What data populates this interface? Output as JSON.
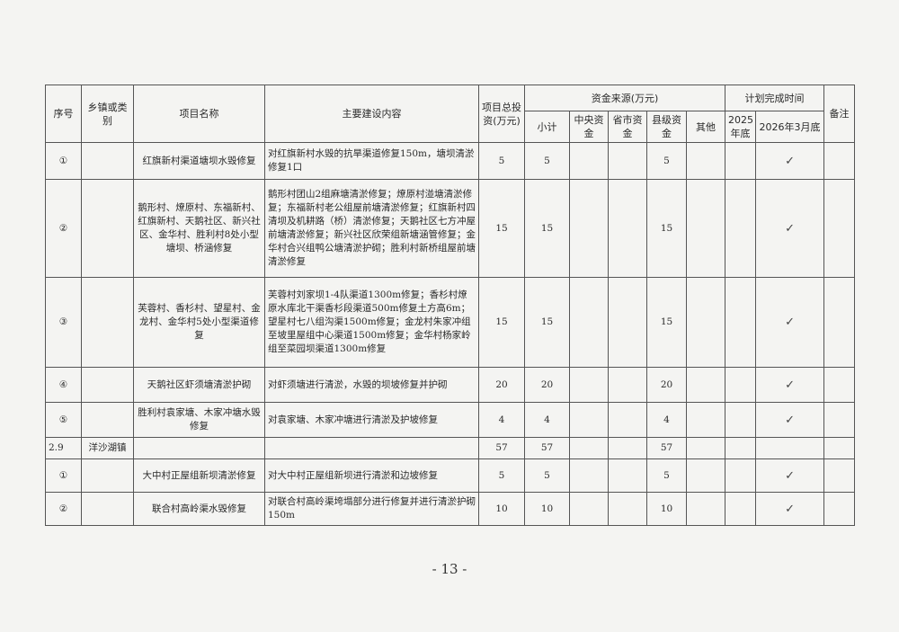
{
  "header": {
    "seq": "序号",
    "town": "乡镇或类别",
    "name": "项目名称",
    "content": "主要建设内容",
    "total": "项目总投资(万元)",
    "funding": "资金来源(万元)",
    "subtotal": "小计",
    "central": "中央资金",
    "province": "省市资金",
    "county": "县级资金",
    "other": "其他",
    "plan": "计划完成时间",
    "y2025": "2025年底",
    "y2026": "2026年3月底",
    "remark": "备注"
  },
  "rows": [
    {
      "seq": "①",
      "town": "",
      "name": "红旗新村渠道塘坝水毁修复",
      "content": "对红旗新村水毁的抗旱渠道修复150m，塘坝清淤修复1口",
      "total": "5",
      "subtotal": "5",
      "central": "",
      "province": "",
      "county": "5",
      "other": "",
      "y2025": "",
      "y2026": "✓",
      "remark": ""
    },
    {
      "seq": "②",
      "town": "",
      "name": "鹅形村、燎原村、东福新村、红旗新村、天鹅社区、新兴社区、金华村、胜利村8处小型塘坝、桥涵修复",
      "content": "鹅形村团山2组麻塘清淤修复；燎原村湴塘清淤修复；东福新村老公组屋前塘清淤修复；红旗新村四清坝及机耕路（桥）清淤修复；天鹅社区七方冲屋前塘清淤修复；新兴社区欣荣组新塘涵管修复；金华村合兴组鸭公塘清淤护砌；胜利村新桥组屋前塘清淤修复",
      "total": "15",
      "subtotal": "15",
      "central": "",
      "province": "",
      "county": "15",
      "other": "",
      "y2025": "",
      "y2026": "✓",
      "remark": ""
    },
    {
      "seq": "③",
      "town": "",
      "name": "芙蓉村、香杉村、望星村、金龙村、金华村5处小型渠道修复",
      "content": "芙蓉村刘家坝1-4队渠道1300m修复；香杉村燎原水库北干渠香杉段渠道500m修复土方高6m；望星村七八组沟渠1500m修复；金龙村朱家冲组至坡里屋组中心渠道1500m修复；金华村杨家岭组至菜园坝渠道1300m修复",
      "total": "15",
      "subtotal": "15",
      "central": "",
      "province": "",
      "county": "15",
      "other": "",
      "y2025": "",
      "y2026": "✓",
      "remark": ""
    },
    {
      "seq": "④",
      "town": "",
      "name": "天鹅社区虾须塘清淤护砌",
      "content": "对虾须塘进行清淤，水毁的坝坡修复并护砌",
      "total": "20",
      "subtotal": "20",
      "central": "",
      "province": "",
      "county": "20",
      "other": "",
      "y2025": "",
      "y2026": "✓",
      "remark": ""
    },
    {
      "seq": "⑤",
      "town": "",
      "name": "胜利村袁家塘、木家冲塘水毁修复",
      "content": "对袁家塘、木家冲塘进行清淤及护坡修复",
      "total": "4",
      "subtotal": "4",
      "central": "",
      "province": "",
      "county": "4",
      "other": "",
      "y2025": "",
      "y2026": "✓",
      "remark": ""
    },
    {
      "seq": "2.9",
      "town": "洋沙湖镇",
      "name": "",
      "content": "",
      "total": "57",
      "subtotal": "57",
      "central": "",
      "province": "",
      "county": "57",
      "other": "",
      "y2025": "",
      "y2026": "",
      "remark": ""
    },
    {
      "seq": "①",
      "town": "",
      "name": "大中村正屋组新坝清淤修复",
      "content": "对大中村正屋组新坝进行清淤和边坡修复",
      "total": "5",
      "subtotal": "5",
      "central": "",
      "province": "",
      "county": "5",
      "other": "",
      "y2025": "",
      "y2026": "✓",
      "remark": ""
    },
    {
      "seq": "②",
      "town": "",
      "name": "联合村高岭渠水毁修复",
      "content": "对联合村高岭渠垮塌部分进行修复并进行清淤护砌150m",
      "total": "10",
      "subtotal": "10",
      "central": "",
      "province": "",
      "county": "10",
      "other": "",
      "y2025": "",
      "y2026": "✓",
      "remark": ""
    }
  ],
  "page_number": "- 13 -"
}
